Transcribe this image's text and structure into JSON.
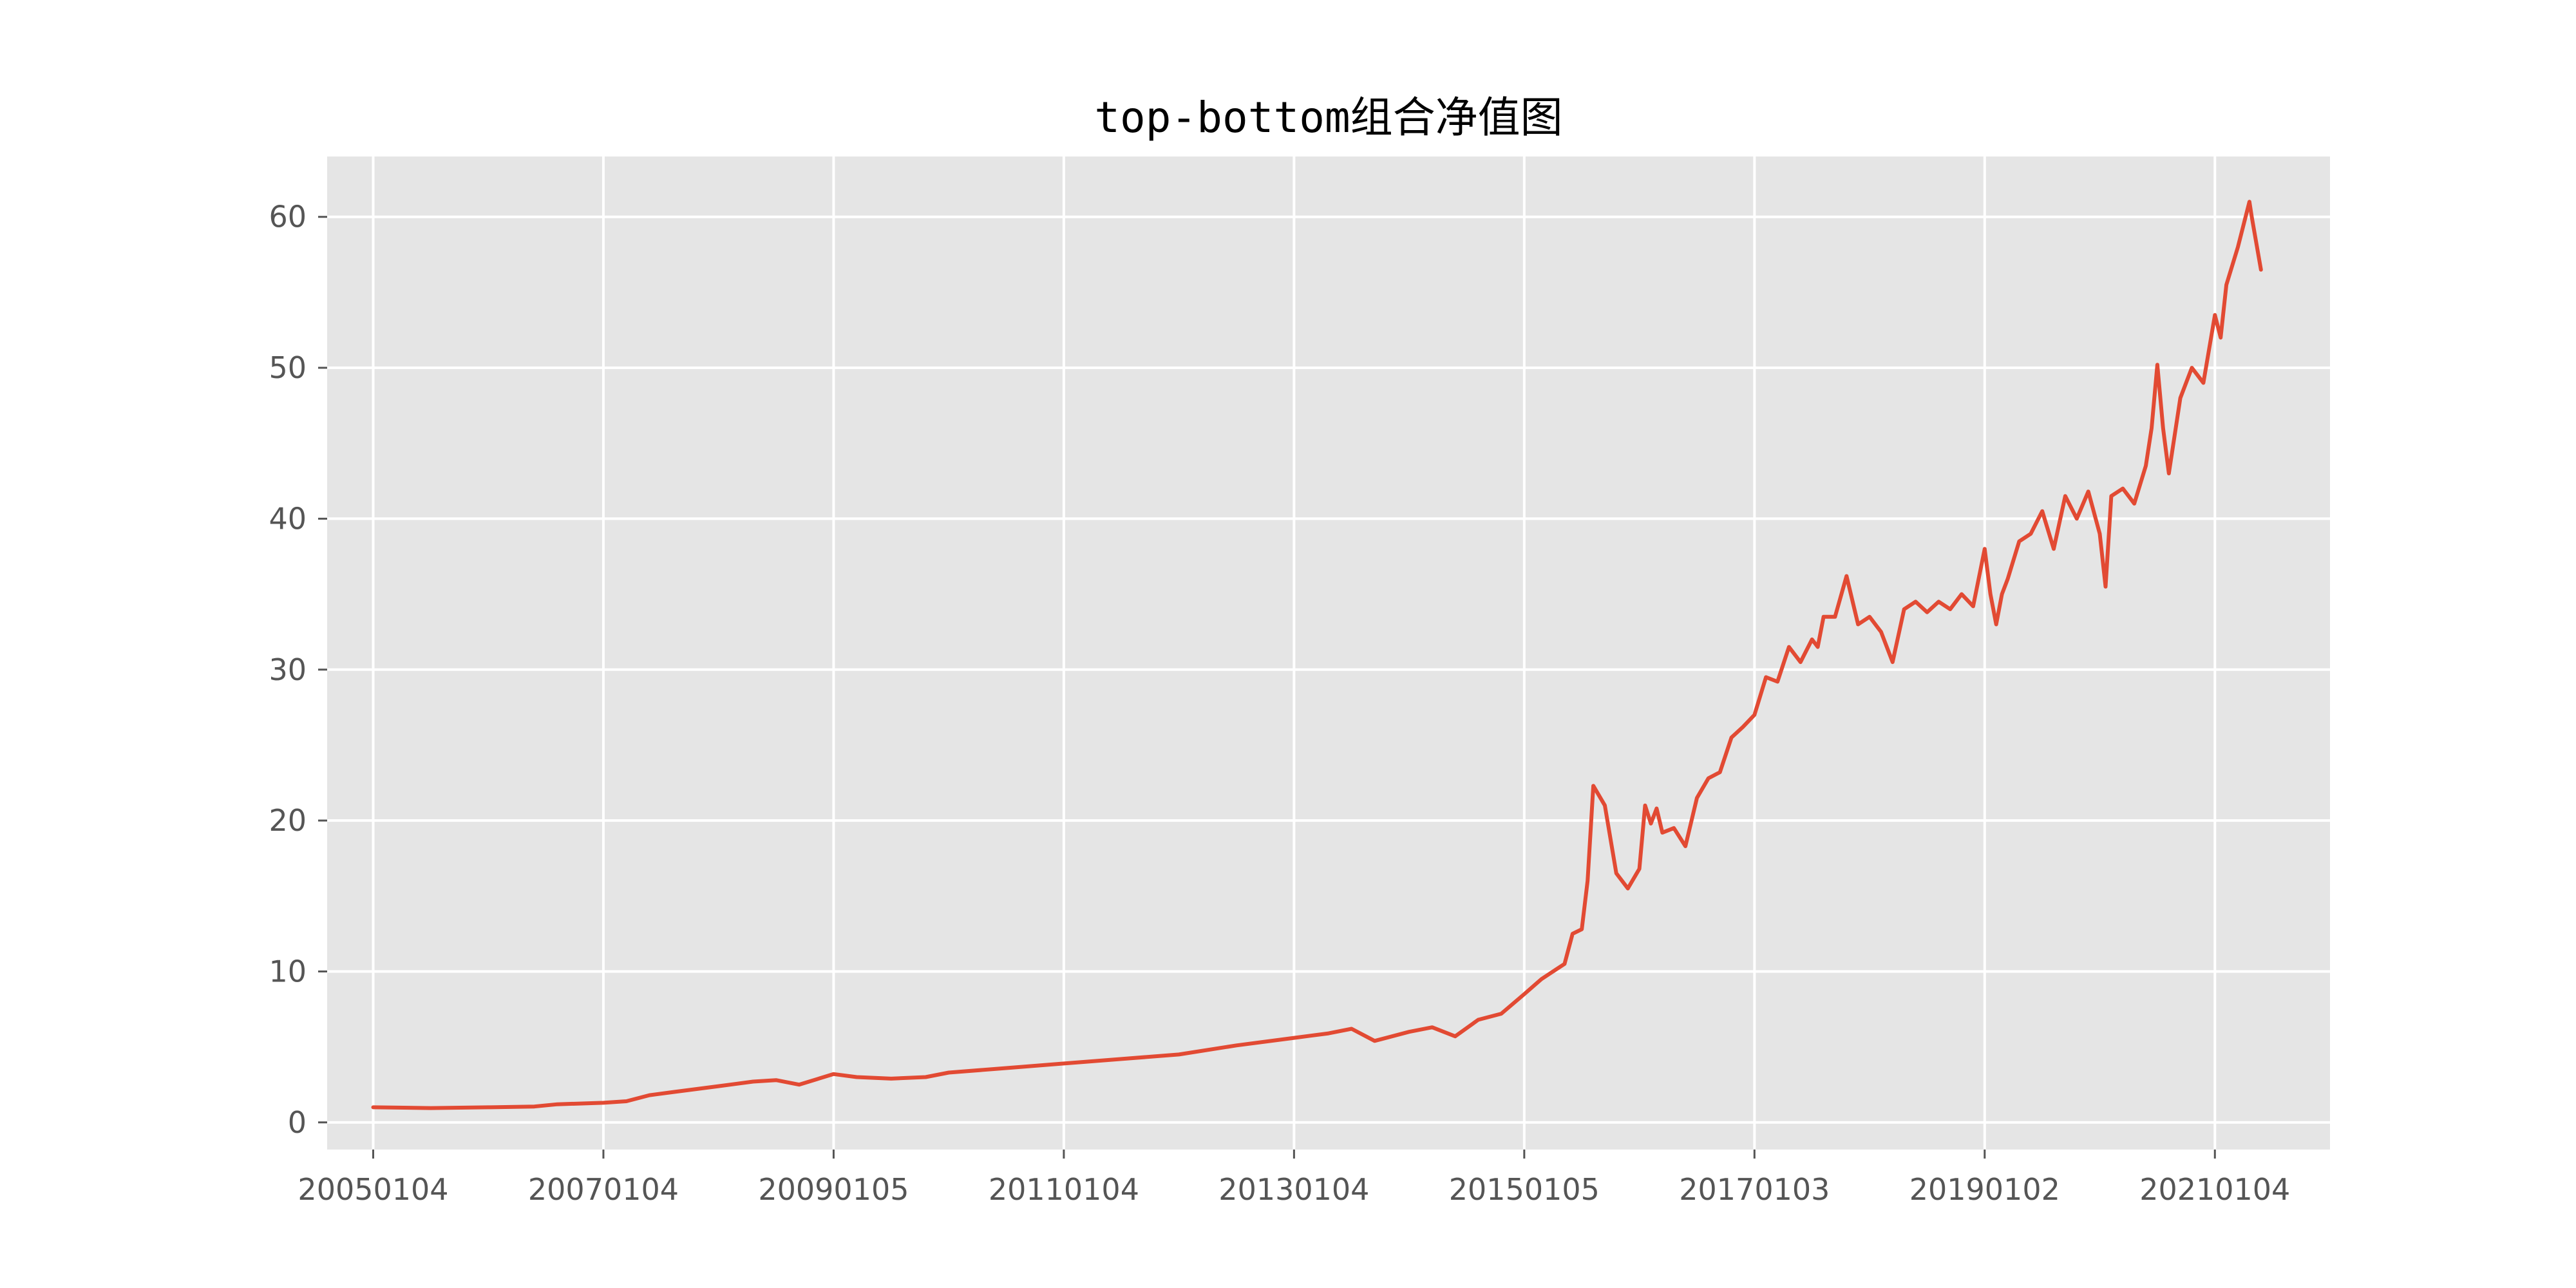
{
  "chart_data": {
    "type": "line",
    "title": "top-bottom组合净值图",
    "xlabel": "",
    "ylabel": "",
    "grid": true,
    "legend": "none",
    "colors": {
      "line": "#E24A33",
      "plot_bg": "#E5E5E5",
      "grid": "#FFFFFF",
      "tick_text": "#555555"
    },
    "x_range": [
      2004.6,
      2022.0
    ],
    "ylim": [
      -1.8,
      64.0
    ],
    "yticks": [
      0,
      10,
      20,
      30,
      40,
      50,
      60
    ],
    "ytick_labels": [
      "0",
      "10",
      "20",
      "30",
      "40",
      "50",
      "60"
    ],
    "xticks": [
      {
        "label": "20050104",
        "value": 2005.0
      },
      {
        "label": "20070104",
        "value": 2007.0
      },
      {
        "label": "20090105",
        "value": 2009.0
      },
      {
        "label": "20110104",
        "value": 2011.0
      },
      {
        "label": "20130104",
        "value": 2013.0
      },
      {
        "label": "20150105",
        "value": 2015.0
      },
      {
        "label": "20170103",
        "value": 2017.0
      },
      {
        "label": "20190102",
        "value": 2019.0
      },
      {
        "label": "20210104",
        "value": 2021.0
      }
    ],
    "series": [
      {
        "x": [
          2005.0,
          2005.5,
          2006.0,
          2006.4,
          2006.6,
          2007.0,
          2007.2,
          2007.4,
          2007.6,
          2008.0,
          2008.3,
          2008.5,
          2008.7,
          2009.0,
          2009.2,
          2009.5,
          2009.8,
          2010.0,
          2010.5,
          2011.0,
          2011.5,
          2012.0,
          2012.5,
          2013.0,
          2013.3,
          2013.5,
          2013.7,
          2014.0,
          2014.2,
          2014.4,
          2014.6,
          2014.8,
          2015.0,
          2015.15,
          2015.25,
          2015.35,
          2015.42,
          2015.5,
          2015.55,
          2015.6,
          2015.7,
          2015.8,
          2015.9,
          2016.0,
          2016.05,
          2016.1,
          2016.15,
          2016.2,
          2016.3,
          2016.4,
          2016.5,
          2016.6,
          2016.7,
          2016.8,
          2016.9,
          2017.0,
          2017.1,
          2017.2,
          2017.3,
          2017.4,
          2017.5,
          2017.55,
          2017.6,
          2017.7,
          2017.8,
          2017.9,
          2018.0,
          2018.1,
          2018.2,
          2018.3,
          2018.4,
          2018.5,
          2018.6,
          2018.7,
          2018.8,
          2018.9,
          2019.0,
          2019.05,
          2019.1,
          2019.15,
          2019.2,
          2019.3,
          2019.4,
          2019.5,
          2019.6,
          2019.7,
          2019.8,
          2019.9,
          2020.0,
          2020.05,
          2020.1,
          2020.2,
          2020.3,
          2020.4,
          2020.45,
          2020.5,
          2020.55,
          2020.6,
          2020.7,
          2020.8,
          2020.9,
          2021.0,
          2021.05,
          2021.1,
          2021.2,
          2021.3,
          2021.32,
          2021.4
        ],
        "values": [
          1.0,
          0.95,
          1.0,
          1.05,
          1.2,
          1.3,
          1.4,
          1.8,
          2.0,
          2.4,
          2.7,
          2.8,
          2.5,
          3.2,
          3.0,
          2.9,
          3.0,
          3.3,
          3.6,
          3.9,
          4.2,
          4.5,
          5.1,
          5.6,
          5.9,
          6.2,
          5.4,
          6.0,
          6.3,
          5.7,
          6.8,
          7.2,
          8.5,
          9.5,
          10.0,
          10.5,
          12.5,
          12.8,
          16.0,
          22.3,
          21.0,
          16.5,
          15.5,
          16.8,
          21.0,
          19.8,
          20.8,
          19.2,
          19.5,
          18.3,
          21.5,
          22.8,
          23.2,
          25.5,
          26.2,
          27.0,
          29.5,
          29.2,
          31.5,
          30.5,
          32.0,
          31.5,
          33.5,
          33.5,
          36.2,
          33.0,
          33.5,
          32.5,
          30.5,
          34.0,
          34.5,
          33.8,
          34.5,
          34.0,
          35.0,
          34.2,
          38.0,
          35.0,
          33.0,
          35.0,
          36.0,
          38.5,
          39.0,
          40.5,
          38.0,
          41.5,
          40.0,
          41.8,
          39.0,
          35.5,
          41.5,
          42.0,
          41.0,
          43.5,
          46.0,
          50.2,
          46.0,
          43.0,
          48.0,
          50.0,
          49.0,
          53.5,
          52.0,
          55.5,
          58.0,
          61.0,
          60.0,
          56.5
        ]
      }
    ]
  }
}
